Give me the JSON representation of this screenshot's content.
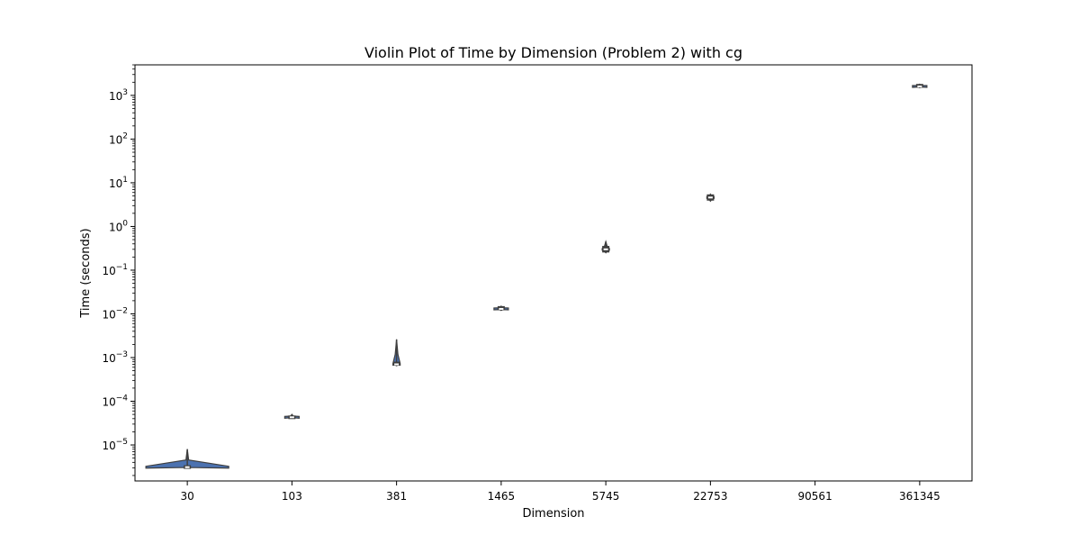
{
  "chart_data": {
    "type": "violin",
    "title": "Violin Plot of Time by Dimension (Problem 2) with cg",
    "xlabel": "Dimension",
    "ylabel": "Time (seconds)",
    "yscale": "log",
    "ylim": [
      1.5e-06,
      5000
    ],
    "yticks": [
      {
        "value": 1e-05,
        "label": "10",
        "exp": "−5"
      },
      {
        "value": 0.0001,
        "label": "10",
        "exp": "−4"
      },
      {
        "value": 0.001,
        "label": "10",
        "exp": "−3"
      },
      {
        "value": 0.01,
        "label": "10",
        "exp": "−2"
      },
      {
        "value": 0.1,
        "label": "10",
        "exp": "−1"
      },
      {
        "value": 1,
        "label": "10",
        "exp": "0"
      },
      {
        "value": 10,
        "label": "10",
        "exp": "1"
      },
      {
        "value": 100,
        "label": "10",
        "exp": "2"
      },
      {
        "value": 1000,
        "label": "10",
        "exp": "3"
      }
    ],
    "categories": [
      "30",
      "103",
      "381",
      "1465",
      "5745",
      "22753",
      "90561",
      "361345"
    ],
    "series": [
      {
        "category": "30",
        "min": 3e-06,
        "q1": 3e-06,
        "median": 3.1e-06,
        "q3": 3.2e-06,
        "max": 8e-06
      },
      {
        "category": "103",
        "min": 4.1e-05,
        "q1": 4.2e-05,
        "median": 4.3e-05,
        "q3": 4.4e-05,
        "max": 5e-05
      },
      {
        "category": "381",
        "min": 0.00065,
        "q1": 0.00068,
        "median": 0.0007,
        "q3": 0.00075,
        "max": 0.0026
      },
      {
        "category": "1465",
        "min": 0.012,
        "q1": 0.0125,
        "median": 0.013,
        "q3": 0.014,
        "max": 0.015
      },
      {
        "category": "5745",
        "min": 0.25,
        "q1": 0.26,
        "median": 0.3,
        "q3": 0.35,
        "max": 0.45
      },
      {
        "category": "22753",
        "min": 3.8,
        "q1": 4.0,
        "median": 4.6,
        "q3": 5.3,
        "max": 5.5
      },
      {
        "category": "90561",
        "min": null,
        "q1": null,
        "median": null,
        "q3": null,
        "max": null
      },
      {
        "category": "361345",
        "min": 1500,
        "q1": 1550,
        "median": 1600,
        "q3": 1700,
        "max": 1800
      }
    ],
    "colors": {
      "violin_fill": "#4c72b0",
      "box": "#3f3f3f",
      "median": "#ffffff",
      "axis": "#000000"
    },
    "grid": false,
    "legend": null
  }
}
